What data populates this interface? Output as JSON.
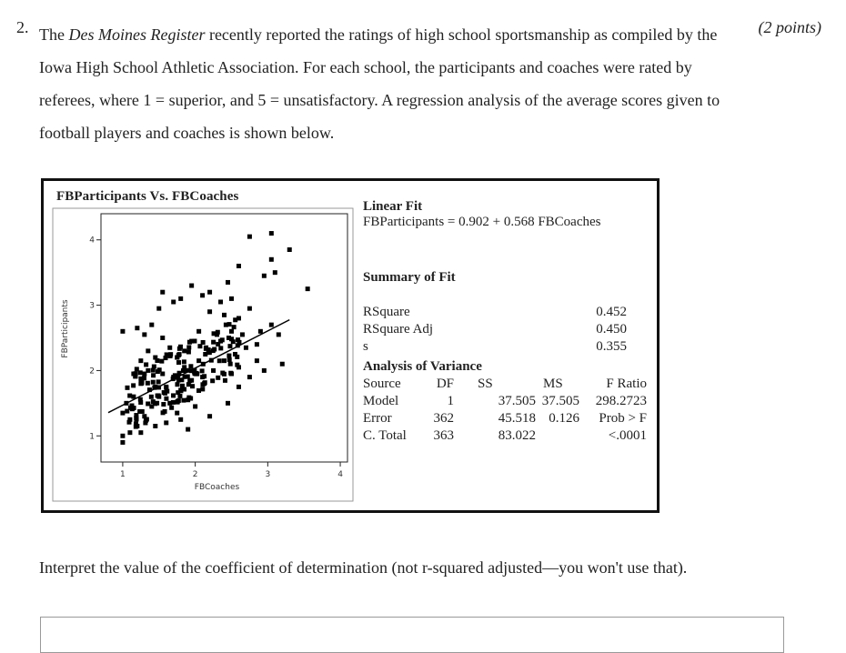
{
  "question": {
    "number": "2.",
    "points": "(2 points)",
    "text_before": "The ",
    "publication": "Des Moines Register",
    "text_after": " recently reported the ratings of high school sportsmanship as compiled by the Iowa High School Athletic Association. For each school, the participants and coaches were rated by referees, where 1 = superior, and 5 = unsatisfactory. A regression analysis of the average scores given to football players and coaches is shown below."
  },
  "chart_data": {
    "type": "scatter",
    "title": "FBParticipants Vs. FBCoaches",
    "xlabel": "FBCoaches",
    "ylabel": "FBParticipants",
    "xlim": [
      0.7,
      4.2
    ],
    "ylim": [
      0.6,
      4.4
    ],
    "xticks": [
      1,
      2,
      3,
      4
    ],
    "yticks": [
      1,
      2,
      3,
      4
    ],
    "fit": {
      "intercept": 0.902,
      "slope": 0.568,
      "x_range": [
        0.8,
        3.3
      ]
    },
    "points": [
      [
        3.05,
        4.1
      ],
      [
        2.75,
        4.05
      ],
      [
        3.3,
        3.85
      ],
      [
        3.05,
        3.7
      ],
      [
        3.1,
        3.5
      ],
      [
        3.55,
        3.25
      ],
      [
        2.6,
        3.6
      ],
      [
        2.95,
        3.45
      ],
      [
        2.2,
        3.2
      ],
      [
        2.35,
        3.05
      ],
      [
        2.5,
        3.1
      ],
      [
        2.1,
        3.15
      ],
      [
        1.95,
        3.3
      ],
      [
        1.8,
        3.1
      ],
      [
        1.7,
        3.05
      ],
      [
        2.2,
        2.9
      ],
      [
        2.4,
        2.85
      ],
      [
        2.6,
        2.8
      ],
      [
        1.5,
        2.95
      ],
      [
        1.4,
        2.7
      ],
      [
        1.2,
        2.65
      ],
      [
        1.3,
        2.55
      ],
      [
        1.0,
        2.6
      ],
      [
        2.9,
        2.6
      ],
      [
        3.05,
        2.7
      ],
      [
        3.15,
        2.55
      ],
      [
        2.85,
        2.4
      ],
      [
        2.7,
        2.35
      ],
      [
        2.55,
        2.25
      ],
      [
        2.4,
        2.15
      ],
      [
        2.25,
        2.0
      ],
      [
        2.1,
        1.9
      ],
      [
        1.95,
        1.85
      ],
      [
        1.85,
        2.05
      ],
      [
        1.75,
        2.2
      ],
      [
        1.65,
        2.35
      ],
      [
        1.55,
        2.5
      ],
      [
        1.45,
        2.2
      ],
      [
        1.35,
        2.0
      ],
      [
        1.25,
        1.8
      ],
      [
        1.15,
        1.6
      ],
      [
        1.05,
        1.5
      ],
      [
        1.0,
        1.35
      ],
      [
        1.1,
        1.25
      ],
      [
        1.2,
        1.15
      ],
      [
        1.3,
        1.3
      ],
      [
        1.4,
        1.45
      ],
      [
        1.5,
        1.6
      ],
      [
        1.6,
        1.75
      ],
      [
        1.7,
        1.9
      ],
      [
        1.8,
        1.7
      ],
      [
        1.9,
        1.55
      ],
      [
        2.0,
        1.45
      ],
      [
        2.2,
        1.3
      ],
      [
        2.45,
        1.5
      ],
      [
        2.6,
        1.75
      ],
      [
        2.75,
        1.9
      ],
      [
        2.95,
        2.0
      ],
      [
        3.2,
        2.1
      ],
      [
        2.5,
        1.95
      ],
      [
        1.0,
        1.0
      ],
      [
        1.0,
        0.9
      ],
      [
        1.1,
        1.05
      ],
      [
        1.25,
        1.05
      ],
      [
        1.45,
        1.15
      ],
      [
        1.6,
        1.2
      ],
      [
        1.8,
        1.25
      ],
      [
        1.9,
        1.1
      ],
      [
        2.5,
        2.6
      ],
      [
        2.3,
        2.55
      ],
      [
        2.05,
        2.6
      ],
      [
        1.95,
        2.45
      ],
      [
        2.15,
        2.35
      ],
      [
        2.35,
        2.45
      ],
      [
        2.65,
        2.55
      ],
      [
        1.55,
        1.95
      ],
      [
        1.35,
        2.3
      ],
      [
        1.65,
        1.5
      ],
      [
        1.75,
        1.35
      ],
      [
        1.45,
        1.75
      ],
      [
        1.25,
        2.15
      ],
      [
        1.15,
        1.95
      ],
      [
        2.85,
        2.15
      ],
      [
        2.6,
        2.05
      ],
      [
        2.05,
        2.15
      ],
      [
        1.85,
        2.3
      ],
      [
        2.75,
        2.95
      ],
      [
        2.45,
        3.35
      ],
      [
        1.55,
        3.2
      ],
      [
        1.3,
        1.95
      ]
    ]
  },
  "stats": {
    "linear_fit_title": "Linear Fit",
    "linear_fit_equation": "FBParticipants = 0.902 + 0.568 FBCoaches",
    "summary_title": "Summary of Fit",
    "summary_rows": [
      {
        "label": "RSquare",
        "value": "0.452"
      },
      {
        "label": "RSquare Adj",
        "value": "0.450"
      },
      {
        "label": "s",
        "value": "0.355"
      }
    ],
    "anova_title": "Analysis of Variance",
    "anova_header": [
      "Source",
      "DF",
      "SS",
      "MS",
      "F Ratio"
    ],
    "anova_rows": [
      [
        "Model",
        "1",
        "37.505",
        "37.505",
        "298.2723"
      ],
      [
        "Error",
        "362",
        "45.518",
        "0.126",
        "Prob > F"
      ],
      [
        "C. Total",
        "363",
        "83.022",
        "",
        "<.0001"
      ]
    ]
  },
  "interpret": "Interpret the value of the coefficient of determination (not r-squared adjusted—you won't use that)."
}
